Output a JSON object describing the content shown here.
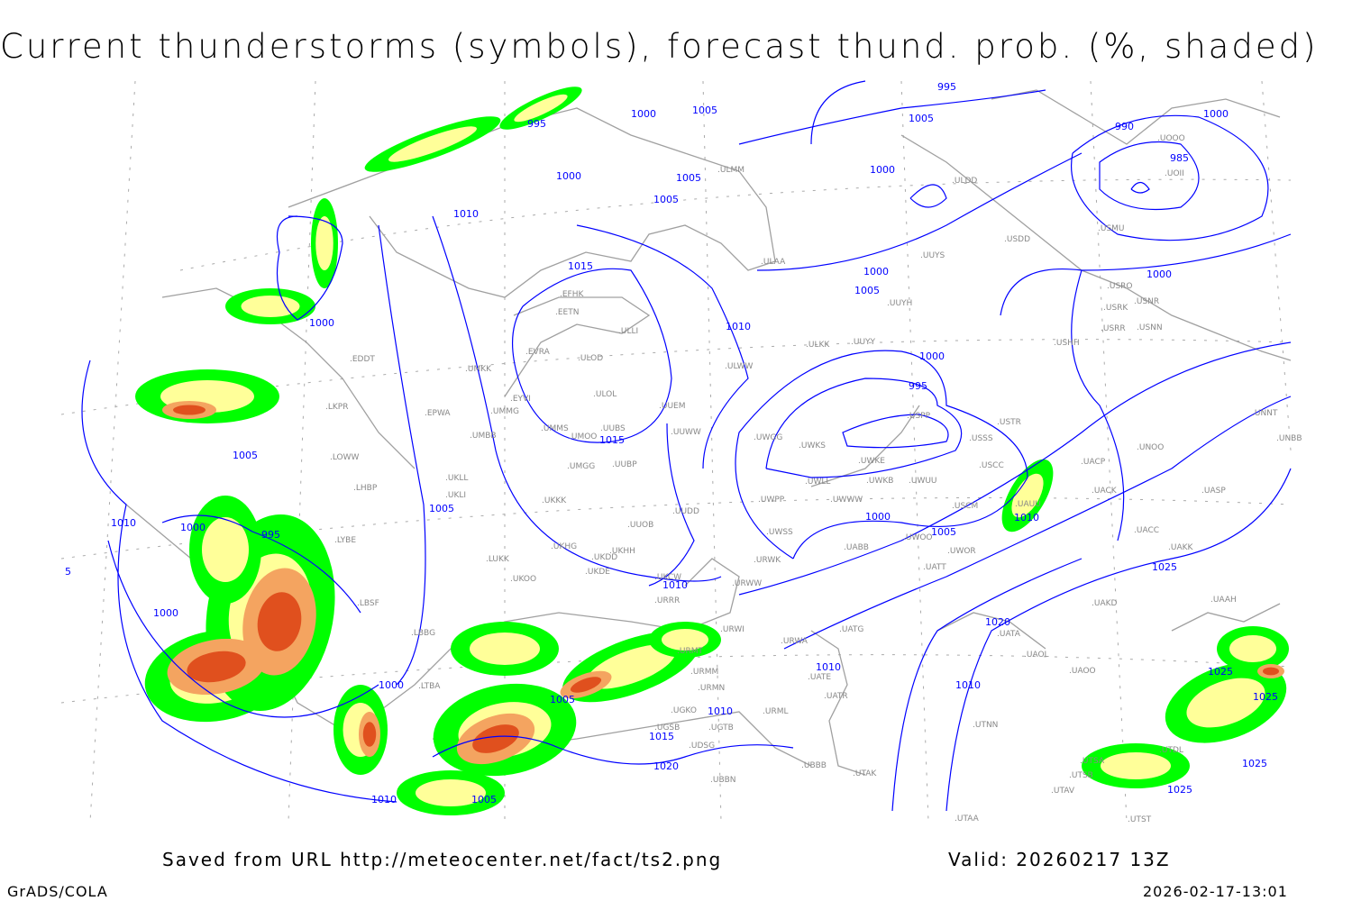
{
  "title": "Current thunderstorms (symbols), forecast thund. prob. (%, shaded)",
  "footer": {
    "saved": "Saved from URL http://meteocenter.net/fact/ts2.png",
    "valid": "Valid: 20260217 13Z",
    "software": "GrADS/COLA",
    "timestamp": "2026-02-17-13:01"
  },
  "colors": {
    "isobar": "#0000ff",
    "coast": "#a0a0a0",
    "prob_low": "#00ff00",
    "prob_mid": "#ffff99",
    "prob_high": "#f4a460",
    "prob_max": "#e0501e"
  },
  "isobar_labels": [
    "995",
    "1000",
    "1005",
    "1000",
    "1005",
    "1005",
    "1005",
    "1000",
    "1010",
    "1015",
    "1000",
    "1005",
    "1000",
    "1010",
    "1015",
    "1000",
    "995",
    "1000",
    "1005",
    "1010",
    "1010",
    "1000",
    "1005",
    "1005",
    "1010",
    "995",
    "1000",
    "1005",
    "1000",
    "1010",
    "1000",
    "1005",
    "1010",
    "1015",
    "1020",
    "1010",
    "1020",
    "1025",
    "1025",
    "1025",
    "1025",
    "1025",
    "995",
    "990",
    "985",
    "1000",
    "1010",
    "5"
  ],
  "stations": [
    "EFHK",
    "EETN",
    "EVRA",
    "ULOD",
    "ULOL",
    "UMKK",
    "EYVI",
    "UMMG",
    "EPWA",
    "LKPR",
    "EDDT",
    "UMBB",
    "UMMS",
    "UMOO",
    "UUBS",
    "UUEM",
    "UUWW",
    "UKLL",
    "UKLI",
    "LOWW",
    "LHBP",
    "UMGG",
    "UUBP",
    "UKKK",
    "UUDD",
    "UUOB",
    "UKHH",
    "UKHG",
    "UKDD",
    "UKDE",
    "LUKK",
    "UKOO",
    "UKCW",
    "URRR",
    "URWW",
    "URWK",
    "UWSS",
    "UWPP",
    "UWGG",
    "UWKS",
    "UWLL",
    "UWWW",
    "UWKE",
    "UWKB",
    "UWUU",
    "USPP",
    "USSS",
    "USCC",
    "USCM",
    "UWOO",
    "UWOR",
    "UATT",
    "UABB",
    "UAUU",
    "UACP",
    "UACK",
    "USTR",
    "USHH",
    "USRR",
    "USNN",
    "USRK",
    "USRO",
    "USNR",
    "USMU",
    "UOII",
    "UOOO",
    "USDD",
    "ULDD",
    "ULMM",
    "ULAA",
    "UUYY",
    "UUYH",
    "UUYS",
    "ULKK",
    "ULWW",
    "ULLI",
    "UNNT",
    "UNBB",
    "UNOO",
    "UASP",
    "UACC",
    "UAKK",
    "UAKD",
    "UAAH",
    "UATG",
    "URWA",
    "UATA",
    "UAOL",
    "UAOO",
    "UATE",
    "UATR",
    "URWI",
    "URMT",
    "URMM",
    "URMN",
    "UGKO",
    "UGTB",
    "UGSB",
    "UDSG",
    "UBBB",
    "URML",
    "UBBN",
    "UTAK",
    "UTNN",
    "UTSA",
    "UTSB",
    "UTAV",
    "UTAA",
    "UTST",
    "UTDL",
    "LBSF",
    "LYBE",
    "LBBG",
    "LTBA"
  ]
}
